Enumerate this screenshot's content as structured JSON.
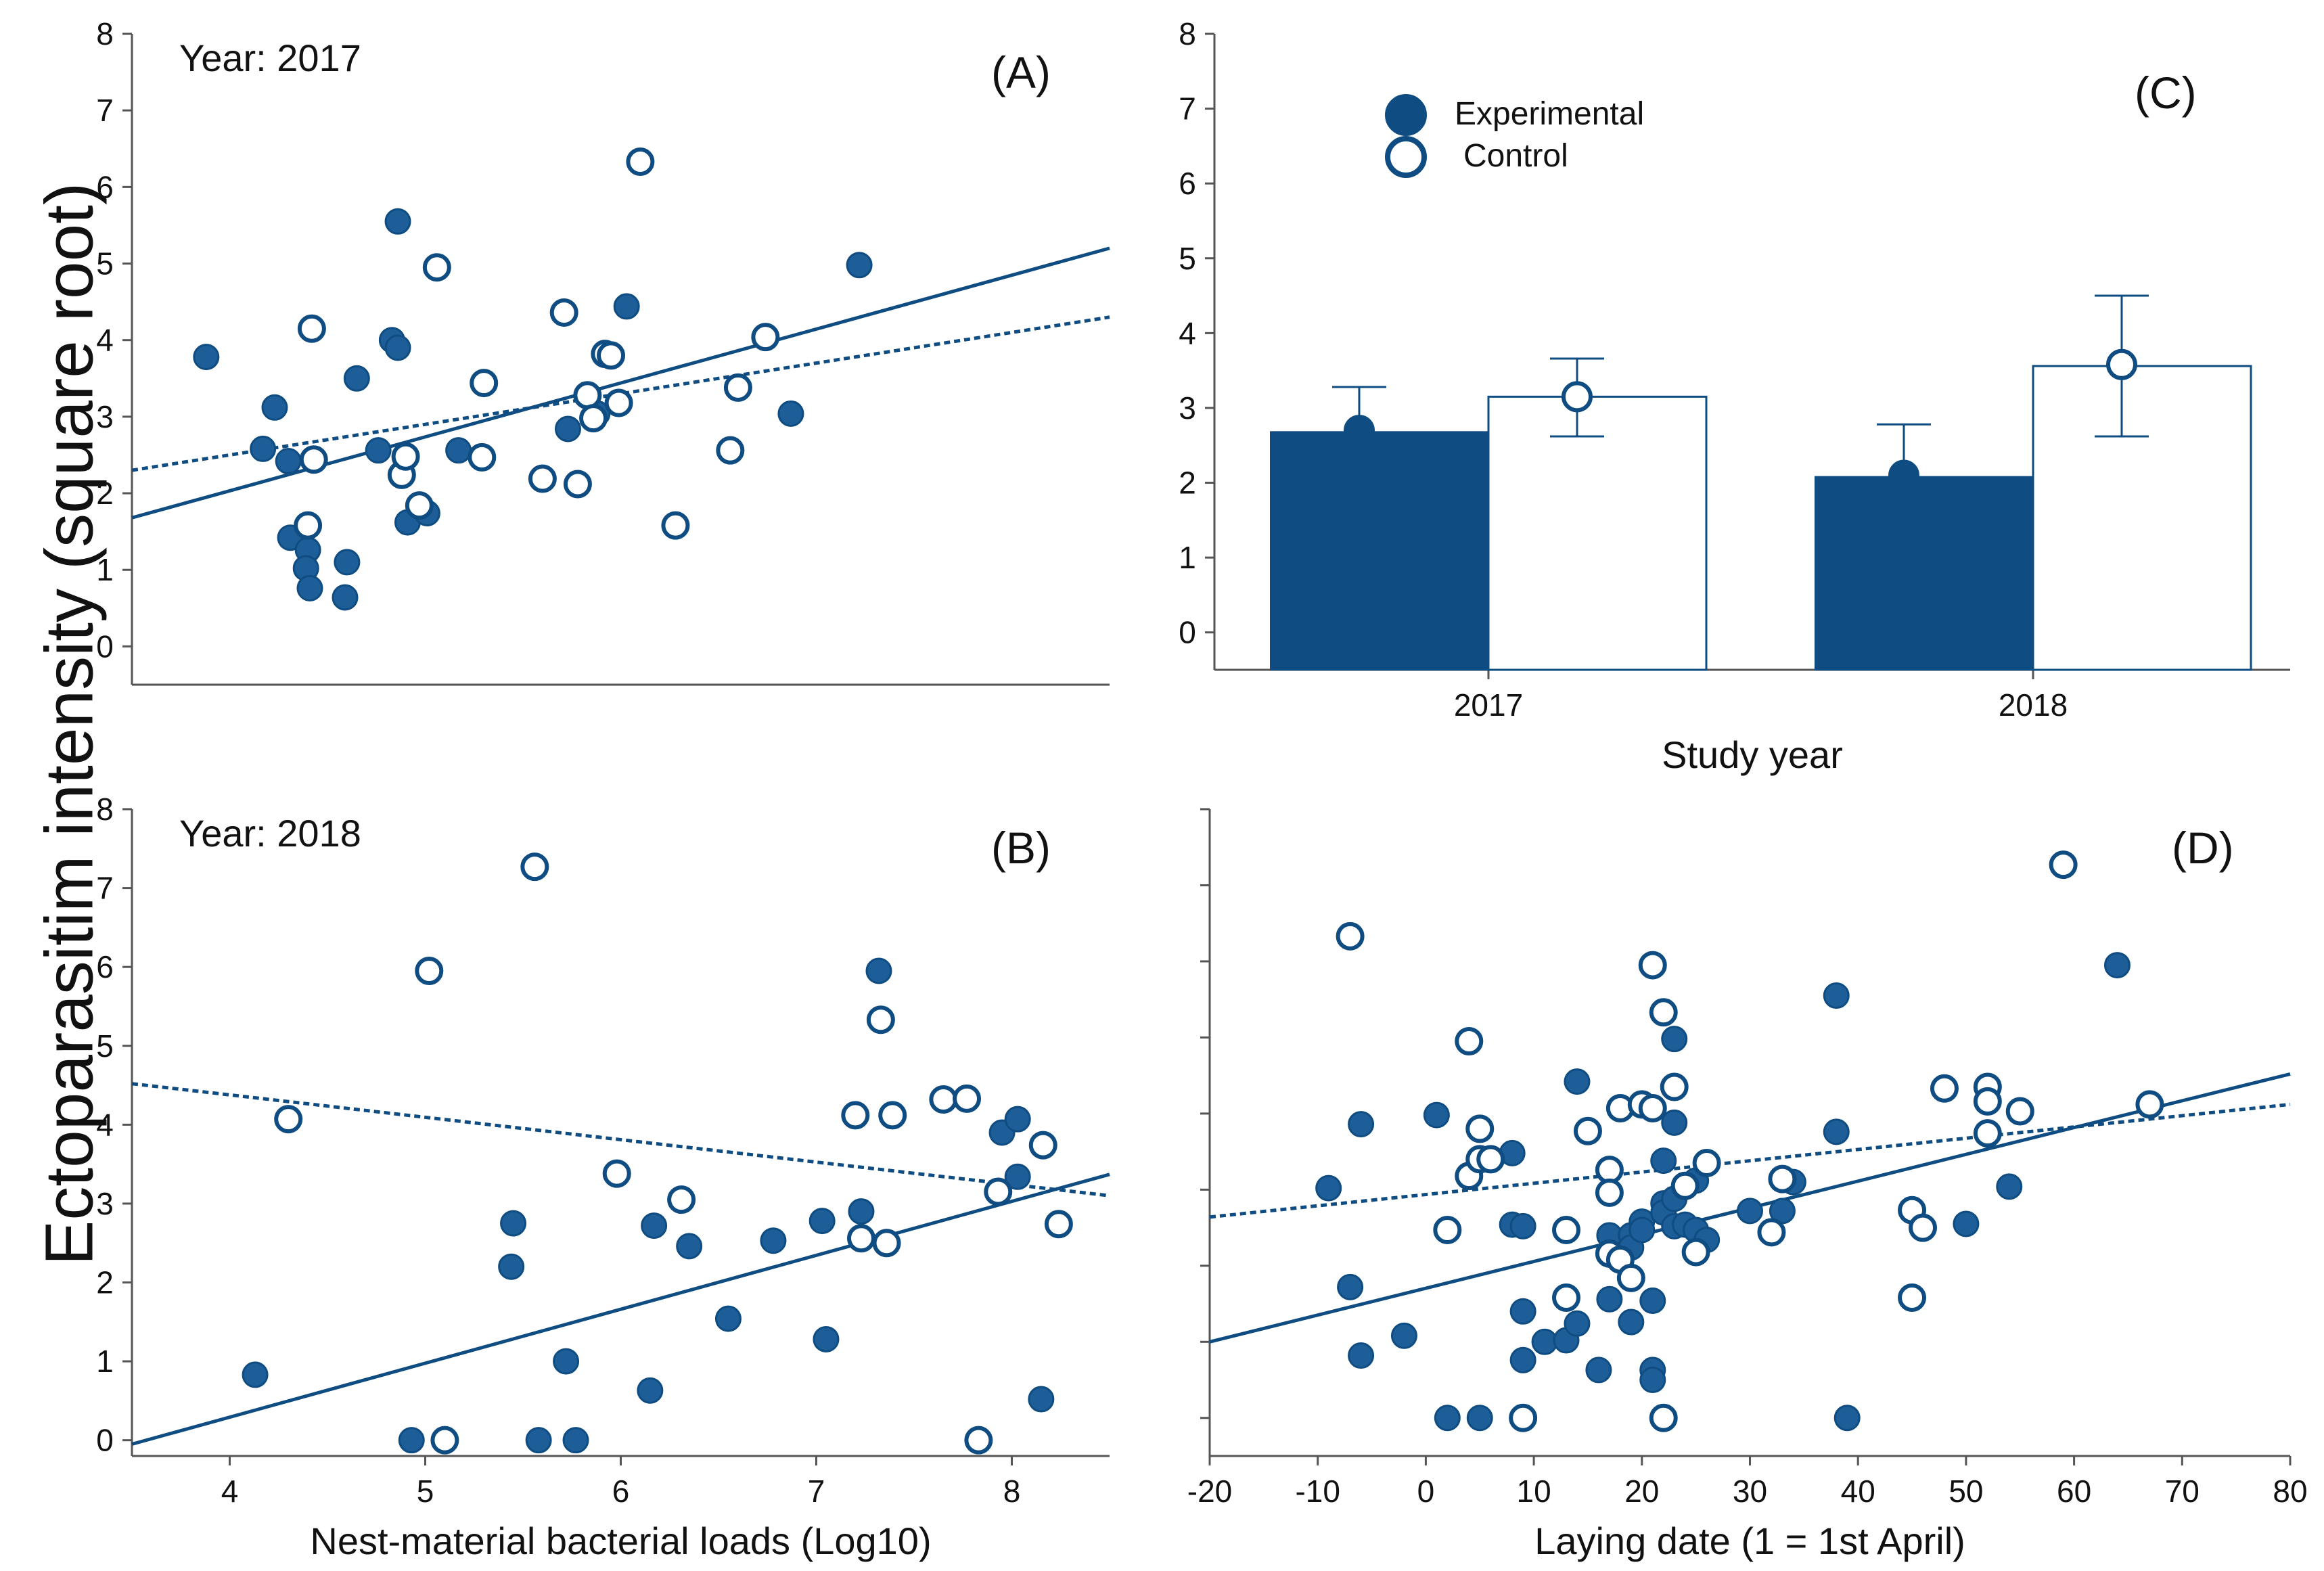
{
  "figure": {
    "y_label": "Ectoparasitim intensity (square root)",
    "colors": {
      "primary": "#0f4c81",
      "fill": "#1d5e99",
      "white": "#ffffff"
    }
  },
  "chart_data": [
    {
      "id": "A",
      "type": "scatter",
      "panel_label": "(A)",
      "annotation": "Year: 2017",
      "xlabel": "",
      "ylabel": "Ectoparasitim intensity (square root)",
      "xlim": [
        3.5,
        8.5
      ],
      "ylim": [
        -0.5,
        8
      ],
      "yticks": [
        0,
        1,
        2,
        3,
        4,
        5,
        6,
        7,
        8
      ],
      "xticks": [],
      "series": [
        {
          "name": "Experimental",
          "marker": "filled",
          "points": [
            [
              3.88,
              3.78
            ],
            [
              4.23,
              3.12
            ],
            [
              4.17,
              2.58
            ],
            [
              4.3,
              2.42
            ],
            [
              4.31,
              1.42
            ],
            [
              4.4,
              1.26
            ],
            [
              4.39,
              1.02
            ],
            [
              4.41,
              0.76
            ],
            [
              4.59,
              0.64
            ],
            [
              4.6,
              1.1
            ],
            [
              4.65,
              3.5
            ],
            [
              4.76,
              2.56
            ],
            [
              4.83,
              4.0
            ],
            [
              4.86,
              3.9
            ],
            [
              4.86,
              5.55
            ],
            [
              4.91,
              1.62
            ],
            [
              5.01,
              1.74
            ],
            [
              5.17,
              2.56
            ],
            [
              5.73,
              2.84
            ],
            [
              5.88,
              3.04
            ],
            [
              6.03,
              4.44
            ],
            [
              6.87,
              3.04
            ],
            [
              7.22,
              4.98
            ]
          ]
        },
        {
          "name": "Control",
          "marker": "open",
          "points": [
            [
              4.42,
              4.15
            ],
            [
              4.4,
              1.58
            ],
            [
              4.43,
              2.44
            ],
            [
              4.88,
              2.24
            ],
            [
              4.9,
              2.48
            ],
            [
              4.97,
              1.84
            ],
            [
              5.06,
              4.95
            ],
            [
              5.29,
              2.47
            ],
            [
              5.3,
              3.44
            ],
            [
              5.6,
              2.19
            ],
            [
              5.71,
              4.36
            ],
            [
              5.78,
              2.12
            ],
            [
              5.83,
              3.28
            ],
            [
              5.86,
              2.98
            ],
            [
              5.92,
              3.82
            ],
            [
              5.95,
              3.8
            ],
            [
              5.99,
              3.18
            ],
            [
              6.1,
              6.33
            ],
            [
              6.28,
              1.58
            ],
            [
              6.56,
              2.56
            ],
            [
              6.6,
              3.38
            ],
            [
              6.74,
              4.04
            ]
          ]
        }
      ],
      "fits": [
        {
          "name": "Experimental",
          "style": "solid",
          "x": [
            3.5,
            8.5
          ],
          "y": [
            1.68,
            5.2
          ]
        },
        {
          "name": "Control",
          "style": "dotted",
          "x": [
            3.5,
            8.5
          ],
          "y": [
            2.3,
            4.3
          ]
        }
      ]
    },
    {
      "id": "B",
      "type": "scatter",
      "panel_label": "(B)",
      "annotation": "Year: 2018",
      "xlabel": "Nest-material bacterial loads (Log10)",
      "ylabel": "Ectoparasitim intensity (square root)",
      "xlim": [
        3.5,
        8.5
      ],
      "ylim": [
        -0.2,
        8
      ],
      "yticks": [
        0,
        1,
        2,
        3,
        4,
        5,
        6,
        7,
        8
      ],
      "xticks": [
        4,
        5,
        6,
        7,
        8
      ],
      "series": [
        {
          "name": "Experimental",
          "marker": "filled",
          "points": [
            [
              4.13,
              0.83
            ],
            [
              4.93,
              0.0
            ],
            [
              5.44,
              2.2
            ],
            [
              5.45,
              2.75
            ],
            [
              5.58,
              0.0
            ],
            [
              5.72,
              1.0
            ],
            [
              5.77,
              0.0
            ],
            [
              6.15,
              0.63
            ],
            [
              6.17,
              2.72
            ],
            [
              6.35,
              2.46
            ],
            [
              6.55,
              1.54
            ],
            [
              6.78,
              2.53
            ],
            [
              7.03,
              2.78
            ],
            [
              7.05,
              1.28
            ],
            [
              7.23,
              2.9
            ],
            [
              7.32,
              5.95
            ],
            [
              7.95,
              3.9
            ],
            [
              8.03,
              4.07
            ],
            [
              8.03,
              3.34
            ],
            [
              8.15,
              0.52
            ]
          ]
        },
        {
          "name": "Control",
          "marker": "open",
          "points": [
            [
              4.3,
              4.07
            ],
            [
              5.02,
              5.95
            ],
            [
              5.1,
              0.0
            ],
            [
              5.56,
              7.27
            ],
            [
              5.98,
              3.38
            ],
            [
              6.31,
              3.05
            ],
            [
              7.2,
              4.12
            ],
            [
              7.23,
              2.56
            ],
            [
              7.33,
              5.33
            ],
            [
              7.36,
              2.5
            ],
            [
              7.39,
              4.12
            ],
            [
              7.65,
              4.32
            ],
            [
              7.77,
              4.33
            ],
            [
              7.83,
              0.0
            ],
            [
              7.93,
              3.15
            ],
            [
              8.16,
              3.74
            ],
            [
              8.24,
              2.74
            ]
          ]
        }
      ],
      "fits": [
        {
          "name": "Experimental",
          "style": "solid",
          "x": [
            3.5,
            8.5
          ],
          "y": [
            -0.05,
            3.37
          ]
        },
        {
          "name": "Control",
          "style": "dotted",
          "x": [
            3.5,
            8.5
          ],
          "y": [
            4.52,
            3.1
          ]
        }
      ]
    },
    {
      "id": "C",
      "type": "bar",
      "panel_label": "(C)",
      "xlabel": "Study year",
      "ylabel": "Ectoparasitim intensity (square root)",
      "categories": [
        "2017",
        "2018"
      ],
      "ylim": [
        -0.5,
        8
      ],
      "yticks": [
        0,
        1,
        2,
        3,
        4,
        5,
        6,
        7,
        8
      ],
      "legend": [
        "Experimental",
        "Control"
      ],
      "series": [
        {
          "name": "Experimental",
          "marker": "filled",
          "values": [
            2.68,
            2.08
          ],
          "means": [
            2.7,
            2.1
          ],
          "upper": [
            3.28,
            2.78
          ]
        },
        {
          "name": "Control",
          "marker": "open",
          "values": [
            3.15,
            3.56
          ],
          "means": [
            3.15,
            3.58
          ],
          "lower": [
            2.62,
            2.62
          ],
          "upper": [
            3.66,
            4.5
          ]
        }
      ]
    },
    {
      "id": "D",
      "type": "scatter",
      "panel_label": "(D)",
      "xlabel": "Laying date (1 = 1st April)",
      "ylabel": "",
      "xlim": [
        -20,
        80
      ],
      "ylim": [
        -0.5,
        8
      ],
      "xticks": [
        -20,
        -10,
        0,
        10,
        20,
        30,
        40,
        50,
        60,
        70,
        80
      ],
      "yticks": [
        0,
        1,
        2,
        3,
        4,
        5,
        6,
        7,
        8
      ],
      "series": [
        {
          "name": "Experimental",
          "marker": "filled",
          "points": [
            [
              -9,
              3.02
            ],
            [
              -7,
              1.72
            ],
            [
              -6,
              3.86
            ],
            [
              -6,
              0.82
            ],
            [
              -2,
              1.08
            ],
            [
              1,
              3.98
            ],
            [
              2,
              0.0
            ],
            [
              5,
              0.0
            ],
            [
              8,
              3.48
            ],
            [
              8,
              2.54
            ],
            [
              9,
              2.52
            ],
            [
              9,
              1.4
            ],
            [
              9,
              0.76
            ],
            [
              11,
              1.0
            ],
            [
              13,
              1.02
            ],
            [
              14,
              1.24
            ],
            [
              14,
              4.42
            ],
            [
              16,
              0.63
            ],
            [
              17,
              2.4
            ],
            [
              17,
              1.56
            ],
            [
              18,
              2.14
            ],
            [
              19,
              2.4
            ],
            [
              19,
              2.24
            ],
            [
              19,
              1.26
            ],
            [
              20,
              2.58
            ],
            [
              20,
              2.47
            ],
            [
              21,
              0.63
            ],
            [
              21,
              0.5
            ],
            [
              21,
              1.54
            ],
            [
              22,
              3.38
            ],
            [
              22,
              2.82
            ],
            [
              22,
              2.7
            ],
            [
              23,
              4.98
            ],
            [
              23,
              3.88
            ],
            [
              23,
              2.88
            ],
            [
              23,
              2.52
            ],
            [
              24,
              2.54
            ],
            [
              25,
              2.47
            ],
            [
              25,
              3.12
            ],
            [
              26,
              2.34
            ],
            [
              30,
              2.72
            ],
            [
              33,
              2.72
            ],
            [
              34,
              3.1
            ],
            [
              38,
              5.55
            ],
            [
              38,
              3.76
            ],
            [
              39,
              0.0
            ],
            [
              50,
              2.55
            ],
            [
              54,
              3.04
            ],
            [
              64,
              5.95
            ]
          ]
        },
        {
          "name": "Control",
          "marker": "open",
          "points": [
            [
              -7,
              6.33
            ],
            [
              2,
              2.47
            ],
            [
              4,
              4.95
            ],
            [
              4,
              3.18
            ],
            [
              5,
              3.4
            ],
            [
              5,
              3.8
            ],
            [
              6,
              3.4
            ],
            [
              9,
              0.0
            ],
            [
              13,
              2.47
            ],
            [
              13,
              1.58
            ],
            [
              15,
              3.77
            ],
            [
              17,
              3.26
            ],
            [
              17,
              2.96
            ],
            [
              17,
              2.16
            ],
            [
              18,
              4.07
            ],
            [
              18,
              2.08
            ],
            [
              19,
              1.84
            ],
            [
              20,
              4.12
            ],
            [
              21,
              5.95
            ],
            [
              21,
              4.07
            ],
            [
              22,
              5.33
            ],
            [
              22,
              0.0
            ],
            [
              23,
              4.35
            ],
            [
              24,
              3.05
            ],
            [
              25,
              2.18
            ],
            [
              26,
              3.35
            ],
            [
              32,
              2.44
            ],
            [
              33,
              3.14
            ],
            [
              45,
              2.73
            ],
            [
              45,
              1.58
            ],
            [
              46,
              2.5
            ],
            [
              48,
              4.33
            ],
            [
              52,
              4.35
            ],
            [
              52,
              4.16
            ],
            [
              52,
              3.74
            ],
            [
              55,
              4.03
            ],
            [
              59,
              7.27
            ],
            [
              67,
              4.12
            ]
          ]
        }
      ],
      "fits": [
        {
          "name": "Experimental",
          "style": "solid",
          "x": [
            -20,
            80
          ],
          "y": [
            1.0,
            4.52
          ]
        },
        {
          "name": "Control",
          "style": "dotted",
          "x": [
            -20,
            80
          ],
          "y": [
            2.64,
            4.12
          ]
        }
      ]
    }
  ]
}
